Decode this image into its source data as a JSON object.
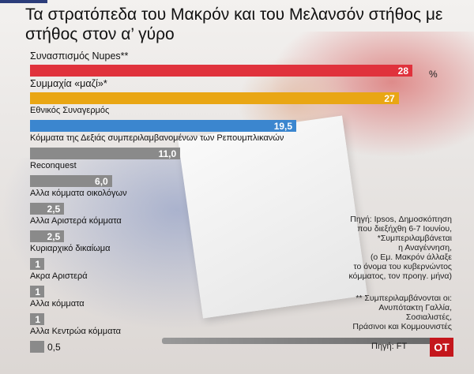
{
  "title": "Τα στρατόπεδα του Μακρόν και του Μελανσόν στήθος με στήθος στον α’ γύρο",
  "unit_label": "%",
  "notes": {
    "source_ipsos": "Πηγή: Ipsos, Δημοσκόπηση\nπου διεξήχθη 6-7 Ιουνίου,\n*Συμπεριλαμβάνεται\nη Αναγέννηση,\n(ο Εμ. Μακρόν άλλαξε\nτο όνομα του κυβερνώντος\nκόμματος, τον προηγ. μήνα)",
    "footnote": "** Συμπεριλαμβάνονται οι:\nΑνυπότακτη Γαλλία,\nΣοσιαλιστές,\nΠράσινοι και Κομμουνιστές",
    "source_ft": "Πηγή: FT",
    "logo": "OT"
  },
  "colors": {
    "nupes": "#e0323c",
    "ensemble": "#e9a614",
    "rn": "#3b86cf",
    "other": "#8a8a8a"
  },
  "chart_data": {
    "type": "bar",
    "orientation": "horizontal",
    "title": "Τα στρατόπεδα του Μακρόν και του Μελανσόν στήθος με στήθος στον α’ γύρο",
    "unit": "%",
    "xlim": [
      0,
      28
    ],
    "categories": [
      "Συνασπισμός Nupes**",
      "Συμμαχία «μαζί»*",
      "Εθνικός Συναγερμός",
      "Κόμματα της Δεξιάς συμπεριλαμβανομένων των Ρεπουμπλικανών",
      "Reconquest",
      "Αλλα κόμματα οικολόγων",
      "Αλλα Αριστερά κόμματα",
      "Κυριαρχικό δικαίωμα",
      "Ακρα Αριστερά",
      "Αλλα κόμματα",
      "Αλλα Κεντρώα κόμματα"
    ],
    "values": [
      28,
      27,
      19.5,
      11.0,
      6.0,
      2.5,
      2.5,
      1,
      1,
      1,
      0.5
    ],
    "value_labels": [
      "28",
      "27",
      "19,5",
      "11,0",
      "6,0",
      "2,5",
      "2,5",
      "1",
      "1",
      "1",
      "0,5"
    ],
    "bar_colors": [
      "#e0323c",
      "#e9a614",
      "#3b86cf",
      "#8a8a8a",
      "#8a8a8a",
      "#8a8a8a",
      "#8a8a8a",
      "#8a8a8a",
      "#8a8a8a",
      "#8a8a8a",
      "#8a8a8a"
    ],
    "legend": "none",
    "grid": false
  }
}
